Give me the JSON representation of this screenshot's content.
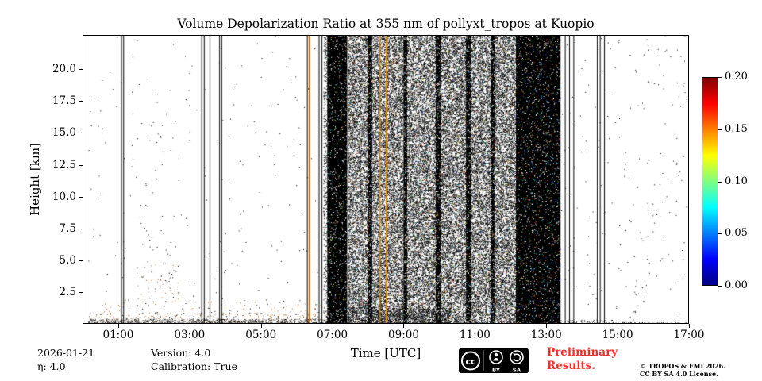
{
  "chart_data": {
    "type": "heatmap",
    "title": "Volume Depolarization Ratio at 355 nm of pollyxt_tropos at Kuopio",
    "xlabel": "Time [UTC]",
    "ylabel": "Height [km]",
    "x_range_hours": [
      0,
      17
    ],
    "y_range_km": [
      0,
      22.7
    ],
    "x_ticks": [
      {
        "t": 1,
        "label": "01:00"
      },
      {
        "t": 3,
        "label": "03:00"
      },
      {
        "t": 5,
        "label": "05:00"
      },
      {
        "t": 7,
        "label": "07:00"
      },
      {
        "t": 9,
        "label": "09:00"
      },
      {
        "t": 11,
        "label": "11:00"
      },
      {
        "t": 13,
        "label": "13:00"
      },
      {
        "t": 15,
        "label": "15:00"
      },
      {
        "t": 17,
        "label": "17:00"
      }
    ],
    "y_ticks": [
      {
        "km": 2.5,
        "label": "2.5"
      },
      {
        "km": 5.0,
        "label": "5.0"
      },
      {
        "km": 7.5,
        "label": "7.5"
      },
      {
        "km": 10.0,
        "label": "10.0"
      },
      {
        "km": 12.5,
        "label": "12.5"
      },
      {
        "km": 15.0,
        "label": "15.0"
      },
      {
        "km": 17.5,
        "label": "17.5"
      },
      {
        "km": 20.0,
        "label": "20.0"
      }
    ],
    "colorbar": {
      "vmin": 0.0,
      "vmax": 0.2,
      "colormap": "jet",
      "ticks": [
        {
          "v": 0.2,
          "label": "0.20"
        },
        {
          "v": 0.15,
          "label": "0.15"
        },
        {
          "v": 0.1,
          "label": "0.10"
        },
        {
          "v": 0.05,
          "label": "0.05"
        },
        {
          "v": 0.0,
          "label": "0.00"
        }
      ],
      "stops": [
        {
          "c": "#000083",
          "p": 0
        },
        {
          "c": "#0000ff",
          "p": 12.5
        },
        {
          "c": "#00ffff",
          "p": 37.5
        },
        {
          "c": "#ffff00",
          "p": 62.5
        },
        {
          "c": "#ff0000",
          "p": 87.5
        },
        {
          "c": "#800000",
          "p": 100
        }
      ]
    },
    "render": {
      "background": "#ffffff",
      "solid_bands": [
        {
          "t0": 6.86,
          "t1": 7.42,
          "color": "#000000"
        },
        {
          "t0": 12.15,
          "t1": 13.4,
          "color": "#000000"
        },
        {
          "t0": 8.0,
          "t1": 8.12,
          "color": "#000000"
        },
        {
          "t0": 9.0,
          "t1": 9.1,
          "color": "#000000"
        },
        {
          "t0": 9.9,
          "t1": 10.05,
          "color": "#000000"
        },
        {
          "t0": 10.75,
          "t1": 10.9,
          "color": "#000000"
        },
        {
          "t0": 11.45,
          "t1": 11.55,
          "color": "#000000"
        }
      ],
      "speckle": [
        {
          "t0": 0.15,
          "t1": 17,
          "h0": 0,
          "h1": 22.7,
          "density": 0.002,
          "colors": [
            "#000000"
          ]
        },
        {
          "t0": 0.15,
          "t1": 17,
          "h0": 0,
          "h1": 0.12,
          "density": 0.5,
          "colors": [
            "#000000"
          ]
        },
        {
          "t0": 0.15,
          "t1": 6.9,
          "h0": 0,
          "h1": 0.4,
          "density": 0.4,
          "colors": [
            "#000000",
            "#3a2a10"
          ]
        },
        {
          "t0": 0.15,
          "t1": 6.9,
          "h0": 0.4,
          "h1": 0.9,
          "density": 0.07,
          "colors": [
            "#000000",
            "#b05a00"
          ]
        },
        {
          "t0": 0.3,
          "t1": 6.9,
          "h0": 0.9,
          "h1": 1.9,
          "density": 0.016,
          "colors": [
            "#000000",
            "#c06000"
          ]
        },
        {
          "t0": 1.5,
          "t1": 2.7,
          "h0": 1.5,
          "h1": 4.8,
          "density": 0.02,
          "colors": [
            "#000000",
            "#c06000",
            "#777777"
          ]
        },
        {
          "t0": 1.6,
          "t1": 2.5,
          "h0": 4.8,
          "h1": 8.2,
          "density": 0.007,
          "colors": [
            "#000000"
          ]
        },
        {
          "t0": 1.85,
          "t1": 2.3,
          "h0": 8.2,
          "h1": 16.5,
          "density": 0.004,
          "colors": [
            "#000000"
          ]
        },
        {
          "t0": 6.75,
          "t1": 6.86,
          "h0": 0,
          "h1": 22.7,
          "density": 0.25,
          "colors": [
            "#000000"
          ]
        },
        {
          "t0": 7.42,
          "t1": 12.15,
          "h0": 0,
          "h1": 22.7,
          "density": 0.55,
          "colors": [
            "#000000"
          ]
        },
        {
          "t0": 7.42,
          "t1": 12.15,
          "h0": 0,
          "h1": 22.7,
          "density": 0.02,
          "colors": [
            "#ff3300",
            "#ff9900",
            "#ffee00",
            "#33cc33",
            "#00ccee",
            "#2255ff"
          ]
        },
        {
          "t0": 7.42,
          "t1": 10.3,
          "h0": 0,
          "h1": 1.3,
          "density": 0.3,
          "colors": [
            "#000000"
          ]
        },
        {
          "t0": 6.86,
          "t1": 7.42,
          "h0": 0,
          "h1": 22.7,
          "density": 0.06,
          "colors": [
            "#ffffff"
          ]
        },
        {
          "t0": 6.86,
          "t1": 7.42,
          "h0": 0,
          "h1": 22.7,
          "density": 0.015,
          "colors": [
            "#33cc33",
            "#00ccee",
            "#ffaa00"
          ]
        },
        {
          "t0": 12.15,
          "t1": 13.4,
          "h0": 0,
          "h1": 22.7,
          "density": 0.05,
          "colors": [
            "#ffffff"
          ]
        },
        {
          "t0": 12.15,
          "t1": 13.4,
          "h0": 0,
          "h1": 22.7,
          "density": 0.03,
          "colors": [
            "#22cc44",
            "#00ccff",
            "#ffaa00",
            "#ff4444",
            "#3366ff"
          ]
        },
        {
          "t0": 8.0,
          "t1": 8.12,
          "h0": 0,
          "h1": 22.7,
          "density": 0.12,
          "colors": [
            "#ffffff"
          ]
        },
        {
          "t0": 9.0,
          "t1": 9.1,
          "h0": 0,
          "h1": 22.7,
          "density": 0.12,
          "colors": [
            "#ffffff"
          ]
        },
        {
          "t0": 9.9,
          "t1": 10.05,
          "h0": 0,
          "h1": 22.7,
          "density": 0.12,
          "colors": [
            "#ffffff"
          ]
        },
        {
          "t0": 10.75,
          "t1": 10.9,
          "h0": 0,
          "h1": 22.7,
          "density": 0.12,
          "colors": [
            "#ffffff"
          ]
        },
        {
          "t0": 11.45,
          "t1": 11.55,
          "h0": 0,
          "h1": 22.7,
          "density": 0.12,
          "colors": [
            "#ffffff"
          ]
        },
        {
          "t0": 13.4,
          "t1": 15.6,
          "h0": 0,
          "h1": 0.35,
          "density": 0.12,
          "colors": [
            "#000000"
          ]
        },
        {
          "t0": 13.4,
          "t1": 17,
          "h0": 0,
          "h1": 22.7,
          "density": 0.0015,
          "colors": [
            "#000000"
          ]
        }
      ],
      "vlines": [
        {
          "t": 1.08,
          "color": "#000000",
          "w": 1
        },
        {
          "t": 1.14,
          "color": "#000000",
          "w": 1
        },
        {
          "t": 3.33,
          "color": "#000000",
          "w": 1
        },
        {
          "t": 3.4,
          "color": "#000000",
          "w": 1
        },
        {
          "t": 3.56,
          "color": "#000000",
          "w": 1
        },
        {
          "t": 3.83,
          "color": "#000000",
          "w": 1
        },
        {
          "t": 3.89,
          "color": "#000000",
          "w": 1
        },
        {
          "t": 6.29,
          "color": "#000000",
          "w": 1
        },
        {
          "t": 6.34,
          "color": "#c87000",
          "w": 2
        },
        {
          "t": 6.62,
          "color": "#000000",
          "w": 1
        },
        {
          "t": 6.7,
          "color": "#000000",
          "w": 1
        },
        {
          "t": 8.33,
          "color": "#d97f00",
          "w": 1
        },
        {
          "t": 8.5,
          "color": "#e08800",
          "w": 2
        },
        {
          "t": 13.52,
          "color": "#000000",
          "w": 1
        },
        {
          "t": 13.64,
          "color": "#000000",
          "w": 1
        },
        {
          "t": 13.76,
          "color": "#000000",
          "w": 1
        },
        {
          "t": 14.42,
          "color": "#000000",
          "w": 1
        },
        {
          "t": 14.5,
          "color": "#000000",
          "w": 1
        },
        {
          "t": 14.62,
          "color": "#000000",
          "w": 1
        }
      ]
    }
  },
  "footer": {
    "date": "2026-01-21",
    "eta": "η: 4.0",
    "version": "Version: 4.0",
    "calibration": "Calibration: True",
    "preliminary_line1": "Preliminary",
    "preliminary_line2": "Results.",
    "preliminary_color": "#ff2a2a",
    "copyright_line1": "© TROPOS & FMI 2026.",
    "copyright_line2": "CC BY SA 4.0 License.",
    "badge": {
      "cc": "cc",
      "by": "BY",
      "sa": "SA"
    }
  }
}
